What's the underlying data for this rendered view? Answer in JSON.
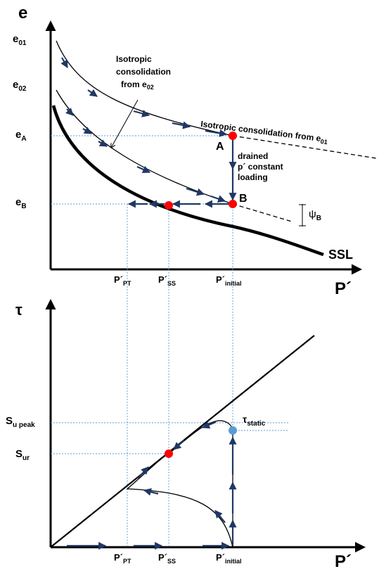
{
  "top": {
    "axis_y": "e",
    "axis_x": "P´",
    "e01": "e",
    "e01_sub": "01",
    "e02": "e",
    "e02_sub": "02",
    "eA": "e",
    "eA_sub": "A",
    "eB": "e",
    "eB_sub": "B",
    "iso_e02_line1": "Isotropic",
    "iso_e02_line2": "consolidation",
    "iso_e02_line3": "from e",
    "iso_e02_sub": "02",
    "iso_e01": "Isotropic consolidation from e",
    "iso_e01_sub": "01",
    "pointA": "A",
    "pointB": "B",
    "drained_line1": "drained",
    "drained_line2": "p´ constant",
    "drained_line3": "loading",
    "psi": "ψ",
    "psi_sub": "B",
    "ssl": "SSL",
    "p_pt": "P´",
    "p_pt_sub": "PT",
    "p_ss": "P´",
    "p_ss_sub": "SS",
    "p_init": "P´",
    "p_init_sub": "initial"
  },
  "bottom": {
    "axis_y": "τ",
    "axis_x": "P´",
    "su_peak": "S",
    "su_peak_sub": "u peak",
    "sur": "S",
    "sur_sub": "ur",
    "tau_static": "τ",
    "tau_static_sub": "static",
    "p_pt": "P´",
    "p_pt_sub": "PT",
    "p_ss": "P´",
    "p_ss_sub": "SS",
    "p_init": "P´",
    "p_init_sub": "initial"
  },
  "colors": {
    "state_point": "#ff0000",
    "static_point": "#5b9bd5",
    "path_arrow": "#1f3864",
    "guide_line": "#5b9bd5"
  }
}
